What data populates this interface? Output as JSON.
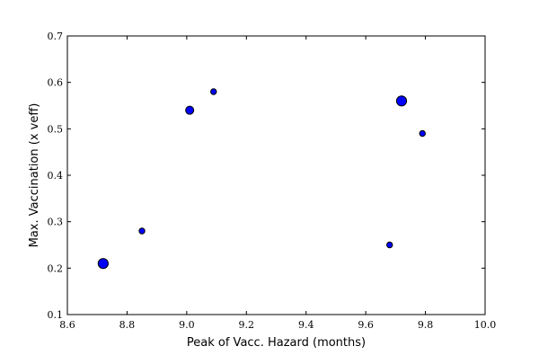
{
  "chart_data": {
    "type": "scatter",
    "title": "",
    "xlabel": "Peak of Vacc. Hazard (months)",
    "ylabel": "Max. Vaccination (x veff)",
    "xlim": [
      8.6,
      10.0
    ],
    "ylim": [
      0.1,
      0.7
    ],
    "xticks": [
      "8.6",
      "8.8",
      "9.0",
      "9.2",
      "9.4",
      "9.6",
      "9.8",
      "10.0"
    ],
    "yticks": [
      "0.1",
      "0.2",
      "0.3",
      "0.4",
      "0.5",
      "0.6",
      "0.7"
    ],
    "grid": false,
    "marker_color": "#0000ff",
    "marker_edge_color": "#000000",
    "points": [
      {
        "x": 8.72,
        "y": 0.21,
        "size": "large"
      },
      {
        "x": 8.85,
        "y": 0.28,
        "size": "small"
      },
      {
        "x": 9.01,
        "y": 0.54,
        "size": "medium"
      },
      {
        "x": 9.09,
        "y": 0.58,
        "size": "small"
      },
      {
        "x": 9.68,
        "y": 0.25,
        "size": "small"
      },
      {
        "x": 9.72,
        "y": 0.56,
        "size": "large"
      },
      {
        "x": 9.79,
        "y": 0.49,
        "size": "small"
      }
    ]
  }
}
